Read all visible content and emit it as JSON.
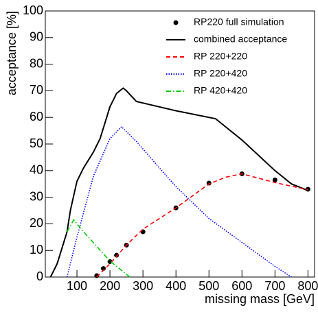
{
  "chart_data": {
    "type": "line",
    "x_label": "missing mass [GeV]",
    "y_label": "acceptance [%]",
    "xlim": [
      0,
      820
    ],
    "ylim": [
      0,
      100
    ],
    "xticks": [
      100,
      200,
      300,
      400,
      500,
      600,
      700,
      800
    ],
    "yticks": [
      0,
      10,
      20,
      30,
      40,
      50,
      60,
      70,
      80,
      90,
      100
    ],
    "series": [
      {
        "name": "RP220 full simulation",
        "color": "#000000",
        "style": "points",
        "x": [
          160,
          180,
          200,
          220,
          250,
          300,
          400,
          500,
          600,
          700,
          800
        ],
        "values": [
          0.5,
          3.2,
          5.8,
          8.2,
          12,
          17,
          26,
          35.3,
          38.8,
          36.5,
          33
        ]
      },
      {
        "name": "combined acceptance",
        "color": "#000000",
        "style": "solid",
        "x": [
          20,
          40,
          60,
          70,
          80,
          100,
          120,
          150,
          170,
          200,
          220,
          240,
          250,
          280,
          400,
          520,
          600,
          700,
          750,
          800
        ],
        "values": [
          0,
          5,
          13,
          17,
          25,
          36,
          41,
          47,
          52,
          64,
          69,
          71,
          70,
          66,
          62.5,
          59.5,
          51.5,
          40,
          35,
          32.5
        ]
      },
      {
        "name": "RP 220+220",
        "color": "#ff0000",
        "style": "dashed",
        "x": [
          160,
          200,
          250,
          300,
          400,
          500,
          550,
          600,
          700,
          800
        ],
        "values": [
          0,
          5,
          12,
          18,
          26,
          35,
          37.5,
          38.8,
          35.5,
          32.8
        ]
      },
      {
        "name": "RP 220+420",
        "color": "#0000ff",
        "style": "dotted",
        "x": [
          70,
          100,
          150,
          200,
          235,
          280,
          350,
          400,
          500,
          600,
          700,
          750
        ],
        "values": [
          0,
          15,
          38,
          52,
          56.5,
          51,
          41,
          34,
          22,
          13,
          4,
          0
        ]
      },
      {
        "name": "RP 420+420",
        "color": "#00cc00",
        "style": "dashdot",
        "x": [
          70,
          90,
          120,
          200,
          260
        ],
        "values": [
          17,
          21.5,
          17,
          6,
          0
        ]
      }
    ]
  }
}
